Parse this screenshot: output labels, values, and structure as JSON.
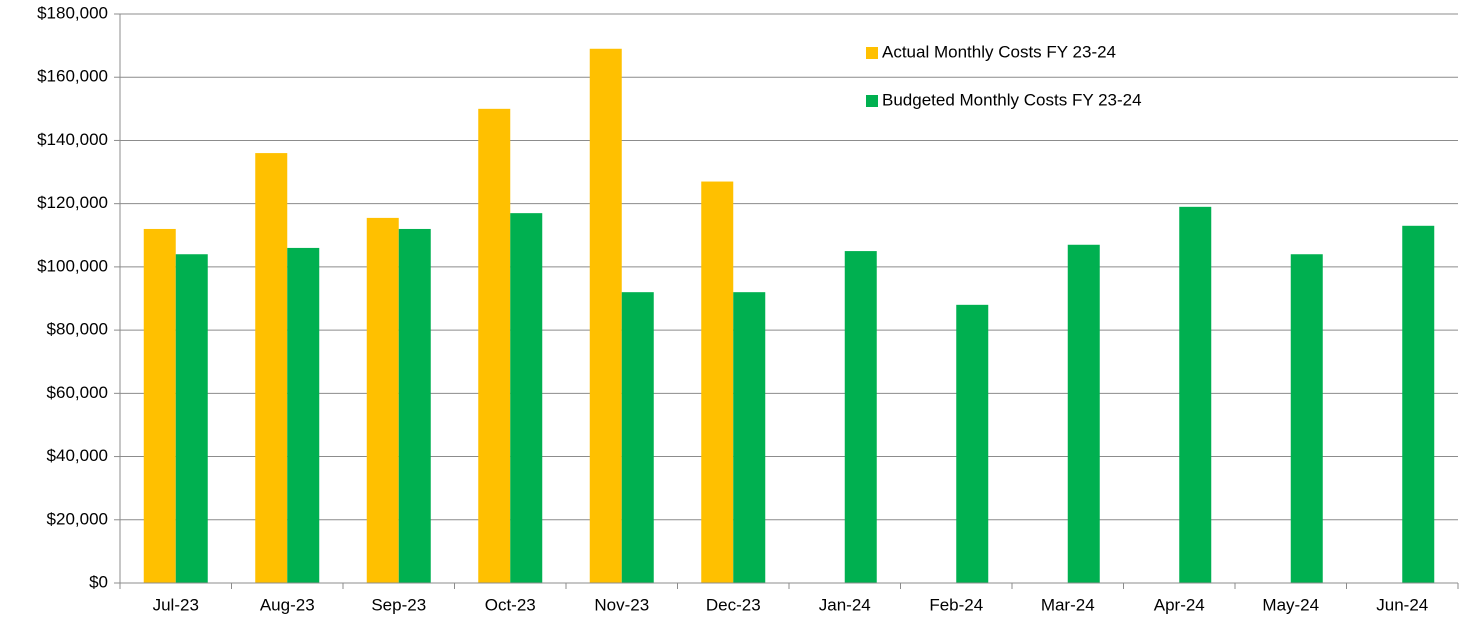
{
  "chart_data": {
    "type": "bar",
    "categories": [
      "Jul-23",
      "Aug-23",
      "Sep-23",
      "Oct-23",
      "Nov-23",
      "Dec-23",
      "Jan-24",
      "Feb-24",
      "Mar-24",
      "Apr-24",
      "May-24",
      "Jun-24"
    ],
    "series": [
      {
        "name": "Actual Monthly Costs FY 23-24",
        "color": "#FFC000",
        "values": [
          112000,
          136000,
          115500,
          150000,
          169000,
          127000,
          null,
          null,
          null,
          null,
          null,
          null
        ]
      },
      {
        "name": "Budgeted Monthly Costs FY 23-24",
        "color": "#00B050",
        "values": [
          104000,
          106000,
          112000,
          117000,
          92000,
          92000,
          105000,
          88000,
          107000,
          119000,
          104000,
          113000
        ]
      }
    ],
    "ylim": [
      0,
      180000
    ],
    "yticks": [
      {
        "value": 0,
        "label": "$0"
      },
      {
        "value": 20000,
        "label": "$20,000"
      },
      {
        "value": 40000,
        "label": "$40,000"
      },
      {
        "value": 60000,
        "label": "$60,000"
      },
      {
        "value": 80000,
        "label": "$80,000"
      },
      {
        "value": 100000,
        "label": "$100,000"
      },
      {
        "value": 120000,
        "label": "$120,000"
      },
      {
        "value": 140000,
        "label": "$140,000"
      },
      {
        "value": 160000,
        "label": "$160,000"
      },
      {
        "value": 180000,
        "label": "$180,000"
      }
    ],
    "grid": true,
    "legend": "top-right"
  }
}
